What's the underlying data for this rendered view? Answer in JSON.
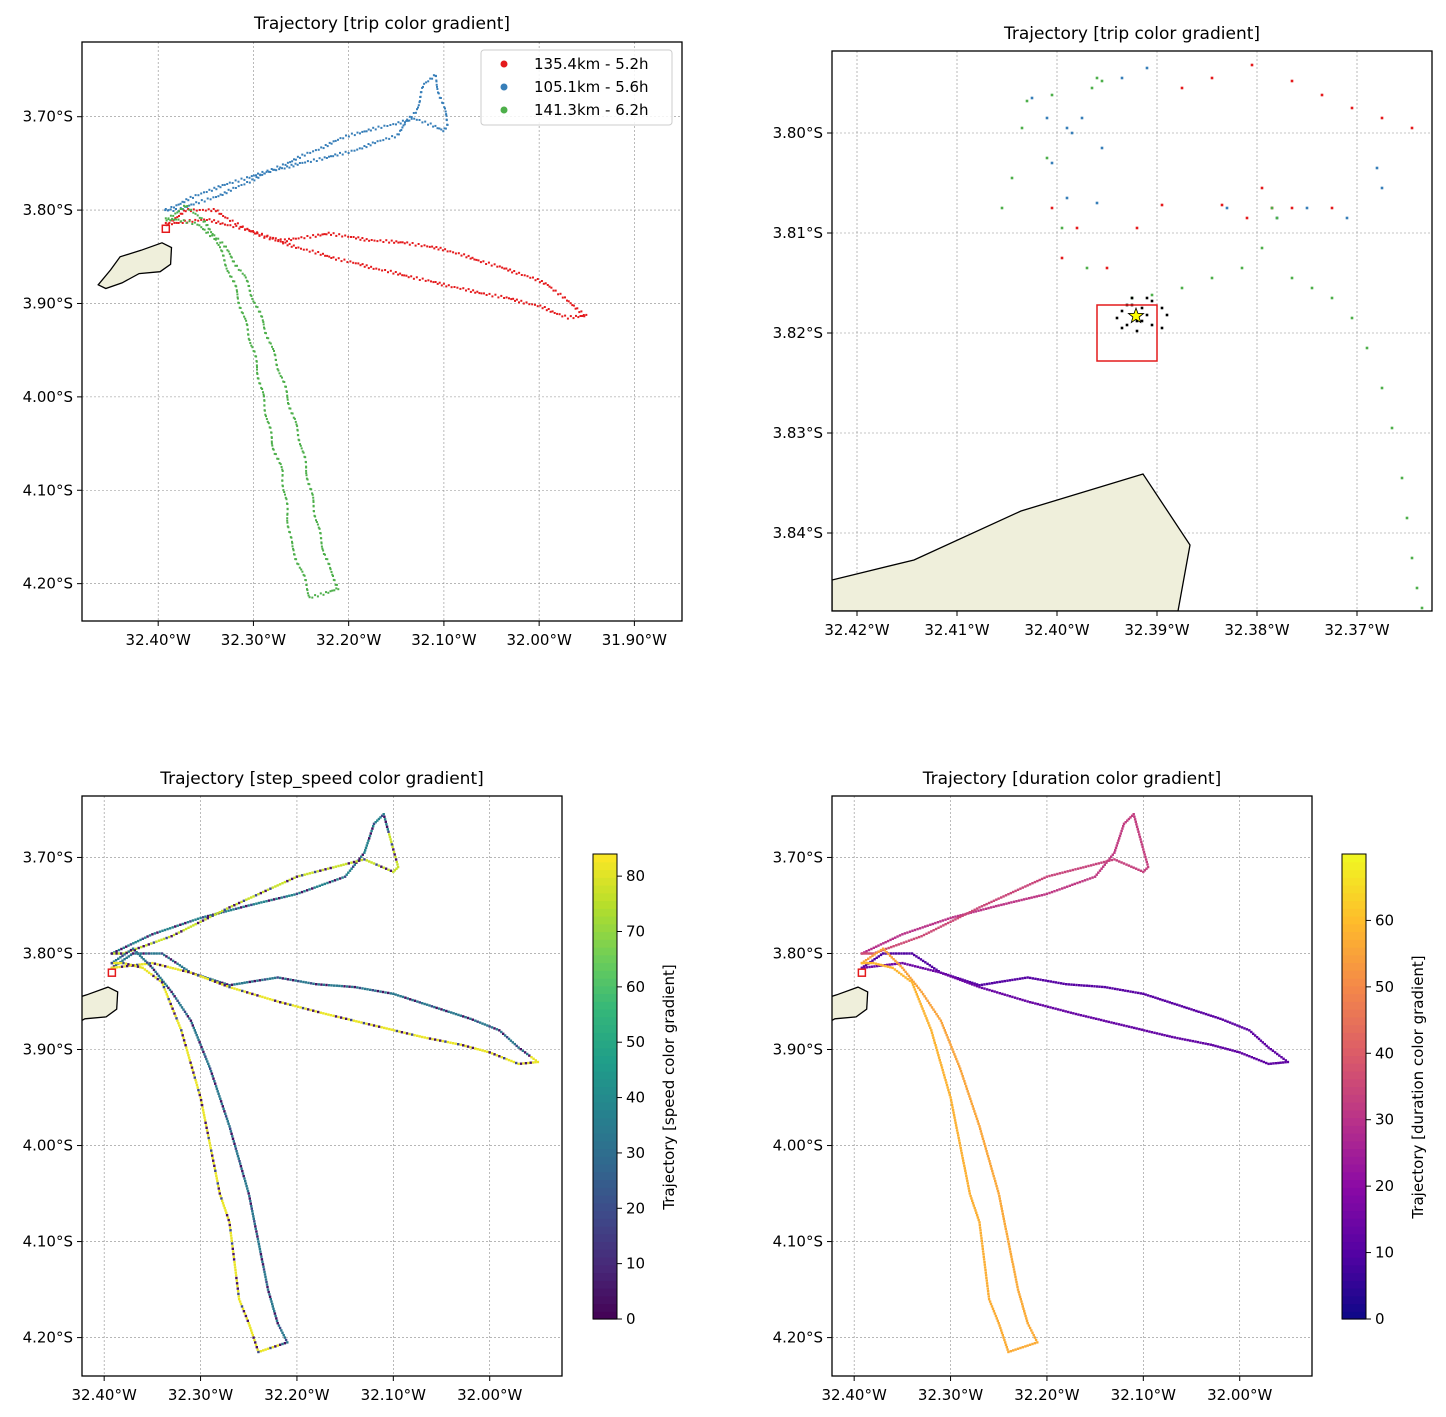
{
  "colors": {
    "trip1": "#e41a1c",
    "trip2": "#377eb8",
    "trip3": "#4daf4a",
    "land": "#efefdb",
    "grid": "#8c8c8c",
    "colony": "#e41a1c",
    "star": "#ffff00"
  },
  "chart_data": [
    {
      "type": "scatter",
      "title": "Trajectory [trip color gradient]",
      "xlabel": "",
      "ylabel": "",
      "xlim": [
        -32.48,
        -31.85
      ],
      "ylim": [
        -4.24,
        -3.62
      ],
      "grid": true,
      "xticks": [
        -32.4,
        -32.3,
        -32.2,
        -32.1,
        -32.0,
        -31.9
      ],
      "xtick_labels": [
        "32.40°W",
        "32.30°W",
        "32.20°W",
        "32.10°W",
        "32.00°W",
        "31.90°W"
      ],
      "yticks": [
        -3.7,
        -3.8,
        -3.9,
        -4.0,
        -4.1,
        -4.2
      ],
      "ytick_labels": [
        "3.70°S",
        "3.80°S",
        "3.90°S",
        "4.00°S",
        "4.10°S",
        "4.20°S"
      ],
      "legend_position": "top-right",
      "series": [
        {
          "name": "135.4km - 5.2h",
          "color": "#e41a1c",
          "x": [
            -32.392,
            -32.37,
            -32.34,
            -32.31,
            -32.27,
            -32.22,
            -32.18,
            -32.14,
            -32.1,
            -32.06,
            -32.02,
            -31.99,
            -31.97,
            -31.95,
            -31.97,
            -32.0,
            -32.03,
            -32.07,
            -32.12,
            -32.17,
            -32.22,
            -32.27,
            -32.31,
            -32.35,
            -32.392
          ],
          "y": [
            -3.815,
            -3.8,
            -3.8,
            -3.82,
            -3.833,
            -3.825,
            -3.832,
            -3.835,
            -3.842,
            -3.855,
            -3.868,
            -3.88,
            -3.898,
            -3.913,
            -3.915,
            -3.903,
            -3.895,
            -3.887,
            -3.875,
            -3.863,
            -3.85,
            -3.835,
            -3.82,
            -3.81,
            -3.815
          ]
        },
        {
          "name": "105.1km - 5.6h",
          "color": "#377eb8",
          "x": [
            -32.392,
            -32.35,
            -32.3,
            -32.25,
            -32.2,
            -32.15,
            -32.13,
            -32.12,
            -32.11,
            -32.095,
            -32.1,
            -32.13,
            -32.2,
            -32.27,
            -32.33,
            -32.38,
            -32.392
          ],
          "y": [
            -3.8,
            -3.78,
            -3.763,
            -3.75,
            -3.738,
            -3.72,
            -3.695,
            -3.665,
            -3.655,
            -3.71,
            -3.715,
            -3.702,
            -3.72,
            -3.752,
            -3.782,
            -3.8,
            -3.8
          ]
        },
        {
          "name": "141.3km - 6.2h",
          "color": "#4daf4a",
          "x": [
            -32.392,
            -32.37,
            -32.35,
            -32.33,
            -32.31,
            -32.29,
            -32.27,
            -32.25,
            -32.24,
            -32.23,
            -32.22,
            -32.21,
            -32.24,
            -32.25,
            -32.26,
            -32.27,
            -32.28,
            -32.29,
            -32.3,
            -32.32,
            -32.34,
            -32.36,
            -32.38,
            -32.392
          ],
          "y": [
            -3.81,
            -3.795,
            -3.815,
            -3.84,
            -3.87,
            -3.92,
            -3.98,
            -4.05,
            -4.1,
            -4.15,
            -4.185,
            -4.205,
            -4.215,
            -4.185,
            -4.16,
            -4.08,
            -4.05,
            -4.0,
            -3.95,
            -3.88,
            -3.83,
            -3.815,
            -3.81,
            -3.81
          ]
        }
      ]
    },
    {
      "type": "scatter",
      "title": "Trajectory [trip color gradient]",
      "xlabel": "",
      "ylabel": "",
      "xlim": [
        -32.4225,
        -32.3625
      ],
      "ylim": [
        -3.8478,
        -3.7918
      ],
      "grid": true,
      "xticks": [
        -32.42,
        -32.41,
        -32.4,
        -32.39,
        -32.38,
        -32.37
      ],
      "xtick_labels": [
        "32.42°W",
        "32.41°W",
        "32.40°W",
        "32.39°W",
        "32.38°W",
        "32.37°W"
      ],
      "yticks": [
        -3.8,
        -3.81,
        -3.82,
        -3.83,
        -3.84
      ],
      "ytick_labels": [
        "3.80°S",
        "3.81°S",
        "3.82°S",
        "3.83°S",
        "3.84°S"
      ],
      "series": [
        {
          "color": "#e41a1c",
          "x": [
            -32.3895,
            -32.3875,
            -32.3845,
            -32.3805,
            -32.3765,
            -32.3735,
            -32.3705,
            -32.3675,
            -32.3645,
            -32.3785,
            -32.3725,
            -32.3795,
            -32.3765,
            -32.3835,
            -32.4005,
            -32.398,
            -32.3995,
            -32.395,
            -32.392,
            -32.381
          ],
          "y": [
            -3.8072,
            -3.7955,
            -3.7945,
            -3.7932,
            -3.7948,
            -3.7962,
            -3.7975,
            -3.7985,
            -3.7995,
            -3.8075,
            -3.8075,
            -3.8055,
            -3.8075,
            -3.8072,
            -3.8075,
            -3.8095,
            -3.8125,
            -3.8135,
            -3.8095,
            -3.8085
          ]
        },
        {
          "color": "#377eb8",
          "x": [
            -32.4025,
            -32.401,
            -32.4005,
            -32.399,
            -32.3985,
            -32.3935,
            -32.3975,
            -32.399,
            -32.391,
            -32.383,
            -32.378,
            -32.375,
            -32.371,
            -32.3675,
            -32.368,
            -32.396,
            -32.3955
          ],
          "y": [
            -3.7965,
            -3.7985,
            -3.803,
            -3.8065,
            -3.8,
            -3.7945,
            -3.7985,
            -3.7995,
            -3.7935,
            -3.8075,
            -3.8085,
            -3.8075,
            -3.8085,
            -3.8055,
            -3.8035,
            -3.807,
            -3.8015
          ]
        },
        {
          "color": "#4daf4a",
          "x": [
            -32.403,
            -32.4005,
            -32.3955,
            -32.396,
            -32.3965,
            -32.4055,
            -32.4045,
            -32.4035,
            -32.401,
            -32.3995,
            -32.397,
            -32.3925,
            -32.3905,
            -32.3875,
            -32.3845,
            -32.3815,
            -32.3795,
            -32.3785,
            -32.378,
            -32.3765,
            -32.3745,
            -32.3725,
            -32.3705,
            -32.369,
            -32.3675,
            -32.3665,
            -32.3655,
            -32.365,
            -32.3645,
            -32.364,
            -32.3635
          ],
          "y": [
            -3.7968,
            -3.7962,
            -3.7948,
            -3.7945,
            -3.7955,
            -3.8075,
            -3.8045,
            -3.7995,
            -3.8025,
            -3.8095,
            -3.8135,
            -3.8165,
            -3.8162,
            -3.8155,
            -3.8145,
            -3.8135,
            -3.8115,
            -3.8075,
            -3.8085,
            -3.8145,
            -3.8155,
            -3.8165,
            -3.8185,
            -3.8215,
            -3.8255,
            -3.8295,
            -3.8345,
            -3.8385,
            -3.8425,
            -3.8455,
            -3.8475
          ]
        },
        {
          "color": "#000000",
          "x": [
            -32.394,
            -32.3935,
            -32.393,
            -32.3925,
            -32.392,
            -32.3915,
            -32.391,
            -32.3905,
            -32.3935,
            -32.392,
            -32.391,
            -32.3895,
            -32.3925,
            -32.3905,
            -32.3915,
            -32.393,
            -32.3895,
            -32.389
          ],
          "y": [
            -3.8185,
            -3.8178,
            -3.8192,
            -3.8172,
            -3.8188,
            -3.8175,
            -3.8182,
            -3.8168,
            -3.8195,
            -3.8198,
            -3.8165,
            -3.8175,
            -3.8165,
            -3.8192,
            -3.8188,
            -3.8172,
            -3.8195,
            -3.8182
          ]
        }
      ]
    },
    {
      "type": "scatter",
      "title": "Trajectory [step_speed color gradient]",
      "xlabel": "",
      "ylabel": "",
      "xlim": [
        -32.423,
        -31.925
      ],
      "ylim": [
        -4.24,
        -3.636
      ],
      "grid": true,
      "xticks": [
        -32.4,
        -32.3,
        -32.2,
        -32.1,
        -32.0
      ],
      "xtick_labels": [
        "32.40°W",
        "32.30°W",
        "32.20°W",
        "32.10°W",
        "32.00°W"
      ],
      "yticks": [
        -3.7,
        -3.8,
        -3.9,
        -4.0,
        -4.1,
        -4.2
      ],
      "ytick_labels": [
        "3.70°S",
        "3.80°S",
        "3.90°S",
        "4.00°S",
        "4.10°S",
        "4.20°S"
      ],
      "colorbar": {
        "label": "Trajectory [speed color gradient]",
        "colormap": "viridis",
        "range": [
          0,
          84
        ],
        "ticks": [
          0,
          10,
          20,
          30,
          40,
          50,
          60,
          70,
          80
        ]
      }
    },
    {
      "type": "scatter",
      "title": "Trajectory [duration color gradient]",
      "xlabel": "",
      "ylabel": "",
      "xlim": [
        -32.423,
        -31.925
      ],
      "ylim": [
        -4.24,
        -3.636
      ],
      "grid": true,
      "xticks": [
        -32.4,
        -32.3,
        -32.2,
        -32.1,
        -32.0
      ],
      "xtick_labels": [
        "32.40°W",
        "32.30°W",
        "32.20°W",
        "32.10°W",
        "32.00°W"
      ],
      "yticks": [
        -3.7,
        -3.8,
        -3.9,
        -4.0,
        -4.1,
        -4.2
      ],
      "ytick_labels": [
        "3.70°S",
        "3.80°S",
        "3.90°S",
        "4.00°S",
        "4.10°S",
        "4.20°S"
      ],
      "colorbar": {
        "label": "Trajectory [duration color gradient]",
        "colormap": "plasma",
        "range": [
          0,
          70
        ],
        "ticks": [
          0,
          10,
          20,
          30,
          40,
          50,
          60
        ]
      }
    }
  ]
}
